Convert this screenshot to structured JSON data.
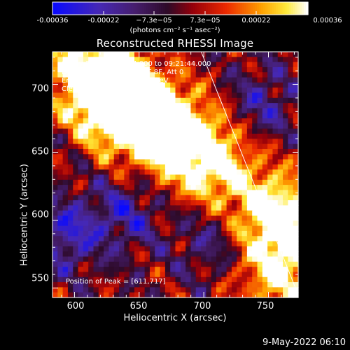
{
  "colorbar": {
    "ticks": [
      "-0.00036",
      "-0.00022",
      "−7.3e−05",
      "7.3e−05",
      "0.00022",
      "0.00036"
    ],
    "units_text": "(photons cm⁻² s⁻¹ asec⁻²)"
  },
  "chart_data": {
    "type": "heatmap",
    "title": "Reconstructed RHESSI Image",
    "xlabel": "Heliocentric X (arcsec)",
    "ylabel": "Heliocentric Y (arcsec)",
    "xlim": [
      583,
      773
    ],
    "ylim": [
      543,
      724
    ],
    "xticks": [
      600,
      650,
      700,
      750
    ],
    "yticks": [
      550,
      600,
      650,
      700
    ],
    "zlim": [
      -0.00036,
      0.00036
    ],
    "colormap": "rainbow-like: blue-purple-red-orange-yellow-white",
    "limb": [
      [
        698,
        724
      ],
      [
        773,
        545
      ]
    ],
    "peak": [
      611,
      717
    ],
    "bright_regions": [
      {
        "x": 620,
        "y": 695,
        "z": 0.00034
      },
      {
        "x": 640,
        "y": 685,
        "z": 0.00033
      },
      {
        "x": 665,
        "y": 670,
        "z": 0.0003
      },
      {
        "x": 700,
        "y": 650,
        "z": 0.00026
      },
      {
        "x": 760,
        "y": 600,
        "z": 0.00028
      },
      {
        "x": 755,
        "y": 555,
        "z": 0.00025
      }
    ],
    "dark_regions": [
      {
        "x": 595,
        "y": 590,
        "z": -0.00025
      },
      {
        "x": 640,
        "y": 605,
        "z": -0.0002
      },
      {
        "x": 705,
        "y": 585,
        "z": -0.00015
      },
      {
        "x": 745,
        "y": 685,
        "z": -0.00018
      }
    ]
  },
  "annotations": {
    "time_range": "8-May-2010 09:15:44.000 to 09:21:44.000",
    "detectors": "Detectors: 3F 4F 5F 6F 7F 8F, Att 0",
    "energy": "Energy Range: 25.0 - 50.0 keV",
    "clean": "Clean    Total counts: 8.52E+03",
    "peak_label": "Position of Peak = [611,717]"
  },
  "footer": "9-May-2022 06:10"
}
